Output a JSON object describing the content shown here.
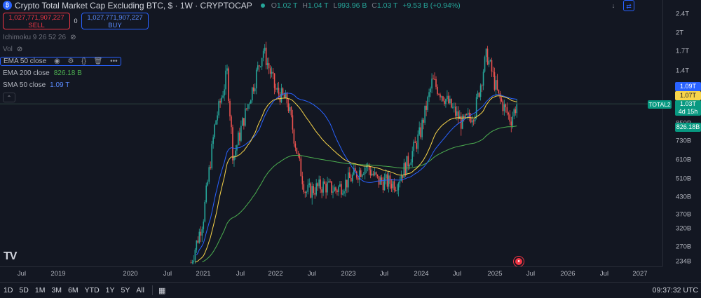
{
  "header": {
    "symbol_icon": "bitcoin-exclusion-icon",
    "title": "Crypto Total Market Cap Excluding BTC, $ · 1W · CRYPTOCAP",
    "ohlc": {
      "o_label": "O",
      "o": "1.02 T",
      "h_label": "H",
      "h": "1.04 T",
      "l_label": "L",
      "l": "993.96 B",
      "c_label": "C",
      "c": "1.03 T",
      "change": "+9.53 B (+0.94%)"
    }
  },
  "trade": {
    "sell_price": "1,027,771,907,227",
    "sell_label": "SELL",
    "spread": "0",
    "buy_price": "1,027,771,907,227",
    "buy_label": "BUY"
  },
  "indicators": [
    {
      "name": "Ichimoku 9 26 52 26",
      "value": "",
      "dim": true
    },
    {
      "name": "Vol",
      "value": "",
      "dim": true
    },
    {
      "name": "EMA 50 close",
      "value": "",
      "selected": true
    },
    {
      "name": "EMA 200 close",
      "value": "826.18 B",
      "color": "#4caf50"
    },
    {
      "name": "SMA 50 close",
      "value": "1.09 T",
      "color": "#2962ff"
    }
  ],
  "price_scale": {
    "ticks": [
      "2.4T",
      "2T",
      "1.7T",
      "1.4T",
      "1.2T",
      "850B",
      "730B",
      "610B",
      "510B",
      "430B",
      "370B",
      "320B",
      "270B",
      "234B"
    ],
    "tags": {
      "sma": "1.09T",
      "ema50": "1.07T",
      "last": "1.03T",
      "countdown": "4d 15h",
      "ema200": "826.18B",
      "symbol_tag": "TOTAL2"
    },
    "colors": {
      "sma": "#2962ff",
      "ema50": "#f7d44a",
      "last": "#089981",
      "ema200": "#089981"
    }
  },
  "time_axis": {
    "labels": [
      "Jul",
      "2019",
      "2020",
      "Jul",
      "2021",
      "Jul",
      "2022",
      "Jul",
      "2023",
      "Jul",
      "2024",
      "Jul",
      "2025",
      "Jul",
      "2026",
      "Jul",
      "2027"
    ]
  },
  "bottom_bar": {
    "timeframes": [
      "1D",
      "5D",
      "1M",
      "3M",
      "6M",
      "YTD",
      "1Y",
      "5Y",
      "All"
    ],
    "date_range_icon": "calendar-range-icon",
    "clock": "09:37:32 UTC"
  },
  "branding": {
    "logo": "TV"
  },
  "chart_data": {
    "type": "candlestick",
    "interval": "1W",
    "series": [
      {
        "name": "TOTAL2",
        "points": [
          [
            "2020-11",
            0.23
          ],
          [
            "2021-01",
            0.35
          ],
          [
            "2021-03",
            0.85
          ],
          [
            "2021-05",
            1.38
          ],
          [
            "2021-06",
            0.62
          ],
          [
            "2021-09",
            1.15
          ],
          [
            "2021-11",
            1.72
          ],
          [
            "2022-01",
            1.18
          ],
          [
            "2022-03",
            1.05
          ],
          [
            "2022-05",
            0.58
          ],
          [
            "2022-06",
            0.45
          ],
          [
            "2022-09",
            0.48
          ],
          [
            "2022-11",
            0.46
          ],
          [
            "2023-01",
            0.5
          ],
          [
            "2023-04",
            0.58
          ],
          [
            "2023-06",
            0.5
          ],
          [
            "2023-09",
            0.49
          ],
          [
            "2023-11",
            0.6
          ],
          [
            "2024-01",
            0.78
          ],
          [
            "2024-03",
            1.28
          ],
          [
            "2024-05",
            1.1
          ],
          [
            "2024-08",
            0.85
          ],
          [
            "2024-10",
            0.95
          ],
          [
            "2024-12",
            1.65
          ],
          [
            "2025-02",
            1.1
          ],
          [
            "2025-04",
            0.88
          ],
          [
            "2025-05",
            1.03
          ]
        ]
      },
      {
        "name": "EMA 50",
        "color": "#f7d44a"
      },
      {
        "name": "EMA 200",
        "color": "#4caf50"
      },
      {
        "name": "SMA 50",
        "color": "#2962ff"
      }
    ]
  }
}
